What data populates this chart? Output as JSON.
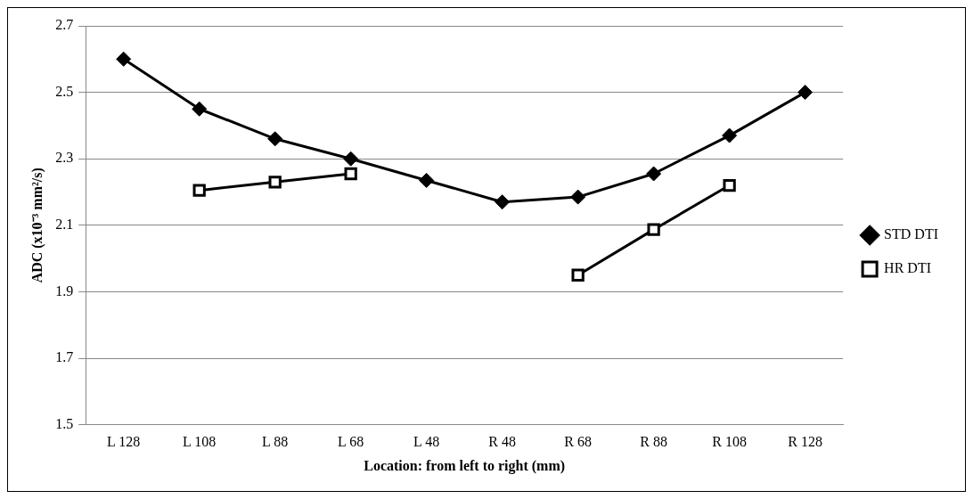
{
  "chart_data": {
    "type": "line",
    "xlabel": "Location: from left to right (mm)",
    "ylabel": "ADC (x10⁻³ mm²/s)",
    "categories": [
      "L 128",
      "L 108",
      "L 88",
      "L 68",
      "L 48",
      "R 48",
      "R 68",
      "R 88",
      "R 108",
      "R 128"
    ],
    "series": [
      {
        "name": "STD DTI",
        "color": "#000000",
        "marker": "diamond",
        "values": [
          2.6,
          2.45,
          2.36,
          2.3,
          2.235,
          2.17,
          2.185,
          2.255,
          2.37,
          2.5
        ]
      },
      {
        "name": "HR DTI",
        "color": "#000000",
        "marker": "square",
        "values": [
          null,
          2.205,
          2.23,
          2.255,
          null,
          null,
          1.95,
          2.087,
          2.22,
          null
        ]
      }
    ],
    "ylim": [
      1.5,
      2.7
    ],
    "yticks": [
      1.5,
      1.7,
      1.9,
      2.1,
      2.3,
      2.5,
      2.7
    ],
    "grid": "y",
    "legend": "right",
    "line_style": "solid"
  }
}
